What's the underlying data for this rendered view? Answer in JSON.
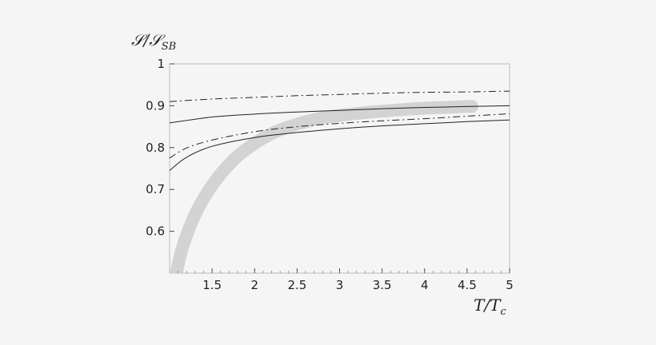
{
  "chart_data": {
    "type": "line",
    "title": "",
    "xlabel": "T/T",
    "xlabel_sub": "c",
    "ylabel": "𝒮/𝒮",
    "ylabel_sub": "SB",
    "xlim": [
      1.0,
      5.0
    ],
    "ylim": [
      0.5,
      1.0
    ],
    "x_ticks": [
      1.5,
      2,
      2.5,
      3,
      3.5,
      4,
      4.5,
      5
    ],
    "x_tick_labels": [
      "1.5",
      "2",
      "2.5",
      "3",
      "3.5",
      "4",
      "4.5",
      "5"
    ],
    "y_ticks": [
      0.6,
      0.7,
      0.8,
      0.9,
      1.0
    ],
    "y_tick_labels": [
      "0.6",
      "0.7",
      "0.8",
      "0.9",
      "1"
    ],
    "grid": false,
    "legend": "none",
    "series": [
      {
        "style": "solid",
        "color": "#222222",
        "x": [
          1.0,
          1.5,
          2.0,
          2.5,
          3.0,
          3.5,
          4.0,
          4.5,
          5.0
        ],
        "y": [
          0.859,
          0.873,
          0.88,
          0.885,
          0.889,
          0.893,
          0.896,
          0.898,
          0.9
        ]
      },
      {
        "style": "solid",
        "color": "#222222",
        "x": [
          1.0,
          1.2,
          1.5,
          2.0,
          2.5,
          3.0,
          3.5,
          4.0,
          4.5,
          5.0
        ],
        "y": [
          0.745,
          0.777,
          0.803,
          0.824,
          0.836,
          0.845,
          0.852,
          0.857,
          0.862,
          0.866
        ]
      },
      {
        "style": "dashdot",
        "color": "#222222",
        "x": [
          1.0,
          1.5,
          2.0,
          2.5,
          3.0,
          3.5,
          4.0,
          4.5,
          5.0
        ],
        "y": [
          0.91,
          0.916,
          0.92,
          0.924,
          0.927,
          0.93,
          0.932,
          0.933,
          0.935
        ]
      },
      {
        "style": "dashdot",
        "color": "#222222",
        "x": [
          1.0,
          1.2,
          1.5,
          2.0,
          2.5,
          3.0,
          3.5,
          4.0,
          4.5,
          5.0
        ],
        "y": [
          0.775,
          0.799,
          0.818,
          0.838,
          0.85,
          0.858,
          0.864,
          0.869,
          0.875,
          0.881
        ]
      },
      {
        "style": "band",
        "color": "#d3d3d3",
        "x": [
          1.08,
          1.15,
          1.3,
          1.5,
          1.75,
          2.0,
          2.25,
          2.5,
          2.75,
          3.0,
          3.5,
          4.0,
          4.5,
          4.55
        ],
        "y": [
          0.5,
          0.56,
          0.64,
          0.71,
          0.77,
          0.81,
          0.838,
          0.856,
          0.869,
          0.877,
          0.887,
          0.894,
          0.898,
          0.898
        ]
      }
    ]
  }
}
